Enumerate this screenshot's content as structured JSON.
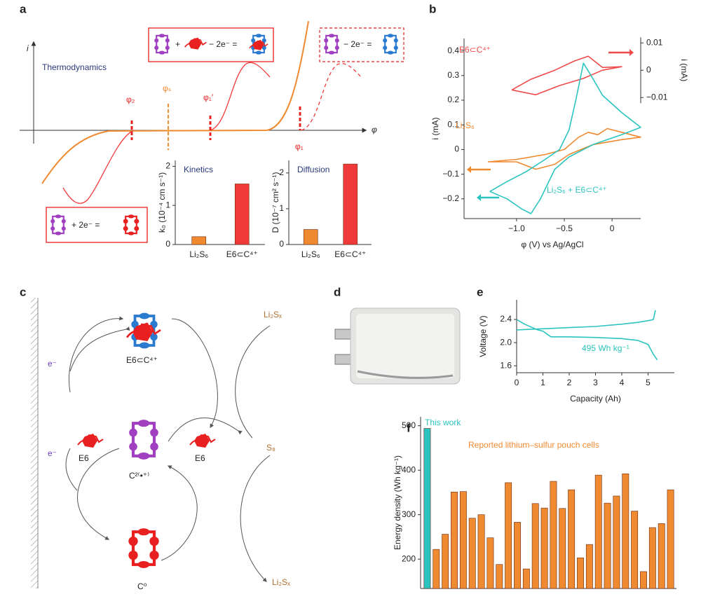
{
  "panel_labels": [
    "a",
    "b",
    "c",
    "d",
    "e",
    "f"
  ],
  "diagram_a": {
    "y_axis": "i",
    "x_axis": "φ",
    "title": "Thermodynamics",
    "phi_2": "φ₂",
    "phi_s": "φₛ",
    "phi_1_prime": "φ₁′",
    "phi_1": "φ₁",
    "eq_1": [
      "+",
      "− 2e⁻ ="
    ],
    "eq_2": "− 2e⁻ =",
    "eq_3": "+ 2e⁻ ="
  },
  "diagram_c": {
    "e_top": "e⁻",
    "e_bottom": "e⁻",
    "complex": "E6⊂C⁴⁺",
    "li2sx_top": "Li₂Sₓ",
    "e6_left": "E6",
    "radical": "C²⁽•⁺⁾",
    "e6_right": "E6",
    "s8": "S₈",
    "neutral": "C⁰",
    "li2sx_bottom": "Li₂Sₓ"
  },
  "chart_data": [
    {
      "type": "bar",
      "title": "Kinetics",
      "ylabel": "k₀ (10⁻⁴ cm s⁻¹)",
      "categories": [
        "Li₂S₆",
        "E6⊂C⁴⁺"
      ],
      "values": [
        0.2,
        1.55
      ],
      "colors": [
        "#f08a30",
        "#f03a3a"
      ],
      "ylim": [
        0,
        2.15
      ],
      "yticks": [
        0,
        1,
        2
      ]
    },
    {
      "type": "bar",
      "title": "Diffusion",
      "ylabel": "D (10⁻⁷ cm² s⁻¹)",
      "categories": [
        "Li₂S₆",
        "E6⊂C⁴⁺"
      ],
      "values": [
        0.42,
        2.25
      ],
      "colors": [
        "#f08a30",
        "#f03a3a"
      ],
      "ylim": [
        0,
        2.35
      ],
      "yticks": [
        0,
        1,
        2
      ]
    },
    {
      "type": "line",
      "xlabel": "φ (V) vs Ag/AgCl",
      "ylabel": "i (mA)",
      "y2label": "i (mA)",
      "xlim": [
        -1.55,
        0.3
      ],
      "xticks": [
        {
          "value": -1,
          "label": "−1.0"
        },
        {
          "value": -0.5,
          "label": "−0.5"
        },
        0
      ],
      "ylim": [
        -0.28,
        0.45
      ],
      "yticks": [
        {
          "value": -0.2,
          "label": "−0.2"
        },
        {
          "value": -0.1,
          "label": "−0.1"
        },
        0,
        0.1,
        0.2,
        0.3,
        0.4
      ],
      "y2lim": [
        -0.0543,
        0.0116
      ],
      "y2ticks": [
        {
          "value": -0.01,
          "label": "−0.01"
        },
        0,
        0.01
      ],
      "series": [
        {
          "name": "E6⊂C⁴⁺",
          "color": "#ee4a4a",
          "axis": "y2",
          "x": [
            -1.05,
            -0.8,
            -0.55,
            -0.3,
            -0.1,
            0.1,
            -0.1,
            -0.25,
            -0.4,
            -0.6,
            -0.85,
            -1.05
          ],
          "values": [
            -0.0072,
            -0.009,
            -0.0056,
            -0.003,
            0,
            0.0013,
            0.001,
            0.0051,
            0.0033,
            0,
            -0.0033,
            -0.0072
          ]
        },
        {
          "name": "Li₂S₆",
          "color": "#f08a30",
          "x": [
            -1.3,
            -1.0,
            -0.7,
            -0.5,
            -0.35,
            -0.25,
            -0.15,
            -0.05,
            0.1,
            0.3,
            0.1,
            -0.2,
            -0.45,
            -0.6,
            -0.8,
            -1.0,
            -1.3
          ],
          "values": [
            -0.05,
            -0.04,
            -0.02,
            0,
            0.05,
            0.07,
            0.06,
            0.085,
            0.07,
            0.05,
            0.04,
            0.02,
            -0.02,
            -0.06,
            -0.08,
            -0.05,
            -0.05
          ]
        },
        {
          "name": "Li₂S₆ + E6⊂C⁴⁺",
          "color": "#2cc4c0",
          "x": [
            -1.28,
            -1.1,
            -0.9,
            -0.7,
            -0.55,
            -0.45,
            -0.38,
            -0.3,
            -0.22,
            -0.1,
            0.1,
            0.3,
            0.1,
            -0.2,
            -0.45,
            -0.6,
            -0.75,
            -0.85,
            -0.95,
            -1.1,
            -1.28
          ],
          "values": [
            -0.17,
            -0.13,
            -0.09,
            -0.04,
            0,
            0.08,
            0.2,
            0.35,
            0.3,
            0.22,
            0.15,
            0.09,
            0.06,
            0.02,
            -0.03,
            -0.08,
            -0.2,
            -0.26,
            -0.24,
            -0.2,
            -0.17
          ]
        }
      ]
    },
    {
      "type": "line",
      "xlabel": "Capacity (Ah)",
      "ylabel": "Voltage (V)",
      "annotation": "495 Wh kg⁻¹",
      "xlim": [
        0,
        6.0
      ],
      "xticks": [
        0,
        1,
        2,
        3,
        4,
        5
      ],
      "ylim": [
        1.48,
        2.74
      ],
      "yticks": [
        1.6,
        {
          "value": 2,
          "label": "2.0"
        },
        2.4
      ],
      "series": [
        {
          "color": "#2cc4c0",
          "x": [
            0,
            0.5,
            1,
            2,
            3,
            4,
            4.6,
            5.0,
            5.2,
            5.25,
            5.28
          ],
          "values": [
            2.22,
            2.23,
            2.24,
            2.26,
            2.28,
            2.32,
            2.35,
            2.38,
            2.4,
            2.5,
            2.56
          ]
        },
        {
          "color": "#2cc4c0",
          "x": [
            0,
            0.3,
            0.8,
            1.0,
            1.3,
            2,
            3,
            4,
            4.6,
            5.0,
            5.2,
            5.35
          ],
          "values": [
            2.4,
            2.32,
            2.22,
            2.2,
            2.1,
            2.1,
            2.09,
            2.07,
            2.04,
            1.97,
            1.8,
            1.7
          ]
        }
      ]
    },
    {
      "type": "bar",
      "ylabel": "Energy density (Wh kg⁻¹)",
      "annotations": [
        "This work",
        "Reported lithium–sulfur pouch cells"
      ],
      "ylim": [
        134,
        520
      ],
      "yticks": [
        200,
        300,
        400,
        500
      ],
      "values": [
        494,
        222,
        256,
        351,
        352,
        292,
        300,
        248,
        188,
        372,
        283,
        178,
        325,
        315,
        375,
        314,
        356,
        203,
        233,
        389,
        326,
        342,
        392,
        308,
        172,
        271,
        280,
        356
      ],
      "colors": [
        "#2cc4c0",
        "#f08a30",
        "#f08a30",
        "#f08a30",
        "#f08a30",
        "#f08a30",
        "#f08a30",
        "#f08a30",
        "#f08a30",
        "#f08a30",
        "#f08a30",
        "#f08a30",
        "#f08a30",
        "#f08a30",
        "#f08a30",
        "#f08a30",
        "#f08a30",
        "#f08a30",
        "#f08a30",
        "#f08a30",
        "#f08a30",
        "#f08a30",
        "#f08a30",
        "#f08a30",
        "#f08a30",
        "#f08a30",
        "#f08a30",
        "#f08a30"
      ]
    }
  ]
}
